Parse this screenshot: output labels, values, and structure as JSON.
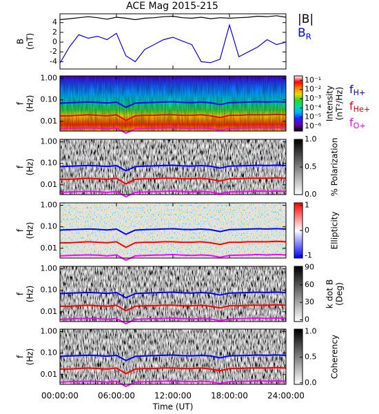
{
  "chart_data": [
    {
      "type": "line",
      "title": "ACE Mag 2015-215",
      "ylabel": [
        "B",
        "(nT)"
      ],
      "x": [
        0,
        1,
        2,
        3,
        4,
        5,
        6,
        7,
        8,
        9,
        10,
        11,
        12,
        13,
        14,
        15,
        16,
        17,
        18,
        19,
        20,
        21,
        22,
        23,
        24
      ],
      "xlim": [
        0,
        24
      ],
      "xticks": [
        0,
        6,
        12,
        18,
        24
      ],
      "ylim": [
        -5.5,
        5.8
      ],
      "yticks": [
        -4,
        -2,
        0,
        2,
        4
      ],
      "series": [
        {
          "name": "|B|",
          "color": "#000000",
          "values": [
            4.6,
            4.8,
            5.0,
            5.2,
            5.0,
            4.7,
            5.1,
            4.9,
            4.6,
            4.9,
            5.0,
            5.2,
            5.3,
            5.0,
            4.9,
            5.1,
            4.8,
            5.0,
            4.9,
            5.0,
            5.1,
            5.3,
            5.2,
            5.4,
            5.1
          ]
        },
        {
          "name": "B",
          "subscript": "R",
          "color": "#0000ff",
          "values": [
            -4.3,
            -1.0,
            1.5,
            0.8,
            1.2,
            0.5,
            1.8,
            -2.8,
            -4.0,
            -1.5,
            -0.5,
            0.5,
            1.0,
            0.2,
            -0.5,
            -4.0,
            -4.2,
            -3.5,
            3.5,
            -3.0,
            -2.0,
            -1.0,
            0.5,
            -0.5,
            0.0
          ]
        }
      ]
    },
    {
      "type": "spectrogram",
      "ylabel": [
        "f",
        "(Hz)"
      ],
      "log_y": true,
      "x": [
        0,
        1,
        2,
        3,
        4,
        5,
        6,
        7,
        8,
        9,
        10,
        11,
        12,
        13,
        14,
        15,
        16,
        17,
        18,
        19,
        20,
        21,
        22,
        23,
        24
      ],
      "xlim": [
        0,
        24
      ],
      "xticks": [
        0,
        6,
        12,
        18,
        24
      ],
      "ylim": [
        0.0035,
        1.3
      ],
      "yticks": [
        {
          "value": 0.01,
          "label": "0.01"
        },
        {
          "value": 0.1,
          "label": "0.10"
        },
        {
          "value": 1,
          "label": "1.00"
        }
      ],
      "colorbar": {
        "label": [
          "Intensity",
          "(nT²/Hz)"
        ],
        "lim": [
          3e-07,
          0.3
        ],
        "log": true,
        "ticks": [
          {
            "value": 1e-06,
            "label": "10⁻⁶"
          },
          {
            "value": 1e-05,
            "label": "10⁻⁵"
          },
          {
            "value": 0.0001,
            "label": "10⁻⁴"
          },
          {
            "value": 0.001,
            "label": "10⁻³"
          },
          {
            "value": 0.01,
            "label": "10⁻²"
          },
          {
            "value": 0.1,
            "label": "10⁻¹"
          }
        ],
        "colors": [
          "#000000",
          "#6a00a8",
          "#2020ff",
          "#00b0ff",
          "#00e0a0",
          "#30d030",
          "#e0e000",
          "#ff8000",
          "#ff0000",
          "#ffffff"
        ]
      },
      "series": [
        {
          "name": "f",
          "subscript": "H+",
          "color": "#0000ff",
          "values": [
            0.07,
            0.073,
            0.076,
            0.079,
            0.076,
            0.071,
            0.078,
            0.045,
            0.07,
            0.074,
            0.076,
            0.079,
            0.081,
            0.076,
            0.074,
            0.078,
            0.073,
            0.06,
            0.074,
            0.076,
            0.078,
            0.081,
            0.079,
            0.082,
            0.078
          ]
        },
        {
          "name": "f",
          "subscript": "He+",
          "color": "#ff0000",
          "values": [
            0.018,
            0.018,
            0.019,
            0.02,
            0.019,
            0.018,
            0.02,
            0.011,
            0.018,
            0.019,
            0.019,
            0.02,
            0.02,
            0.019,
            0.019,
            0.02,
            0.018,
            0.015,
            0.019,
            0.019,
            0.02,
            0.02,
            0.02,
            0.021,
            0.02
          ]
        },
        {
          "name": "f",
          "subscript": "O+",
          "color": "#ff00ff",
          "values": [
            0.0044,
            0.0046,
            0.0048,
            0.0049,
            0.0048,
            0.0044,
            0.0049,
            0.0028,
            0.0044,
            0.0046,
            0.0048,
            0.0049,
            0.0051,
            0.0048,
            0.0046,
            0.0049,
            0.0046,
            0.0038,
            0.0046,
            0.0048,
            0.0049,
            0.0051,
            0.0049,
            0.0051,
            0.0049
          ]
        }
      ]
    },
    {
      "type": "spectrogram",
      "ylabel": [
        "f",
        "(Hz)"
      ],
      "log_y": true,
      "x": [
        0,
        1,
        2,
        3,
        4,
        5,
        6,
        7,
        8,
        9,
        10,
        11,
        12,
        13,
        14,
        15,
        16,
        17,
        18,
        19,
        20,
        21,
        22,
        23,
        24
      ],
      "xlim": [
        0,
        24
      ],
      "xticks": [
        0,
        6,
        12,
        18,
        24
      ],
      "ylim": [
        0.0035,
        1.3
      ],
      "yticks": [
        {
          "value": 0.01,
          "label": "0.01"
        },
        {
          "value": 0.1,
          "label": "0.10"
        },
        {
          "value": 1,
          "label": "1.00"
        }
      ],
      "colorbar": {
        "label": [
          "% Polarization"
        ],
        "lim": [
          0,
          1
        ],
        "ticks": [
          {
            "value": 0,
            "label": "0.0"
          },
          {
            "value": 0.5,
            "label": "0.5"
          },
          {
            "value": 1,
            "label": "1.0"
          }
        ],
        "colors": [
          "#ffffff",
          "#000000"
        ]
      },
      "series": [
        {
          "color": "#0000ff",
          "values": [
            0.07,
            0.073,
            0.076,
            0.079,
            0.076,
            0.071,
            0.078,
            0.045,
            0.07,
            0.074,
            0.076,
            0.079,
            0.081,
            0.076,
            0.074,
            0.078,
            0.073,
            0.06,
            0.074,
            0.076,
            0.078,
            0.081,
            0.079,
            0.082,
            0.078
          ]
        },
        {
          "color": "#ff0000",
          "values": [
            0.018,
            0.018,
            0.019,
            0.02,
            0.019,
            0.018,
            0.02,
            0.011,
            0.018,
            0.019,
            0.019,
            0.02,
            0.02,
            0.019,
            0.019,
            0.02,
            0.018,
            0.015,
            0.019,
            0.019,
            0.02,
            0.02,
            0.02,
            0.021,
            0.02
          ]
        },
        {
          "color": "#ff00ff",
          "values": [
            0.0044,
            0.0046,
            0.0048,
            0.0049,
            0.0048,
            0.0044,
            0.0049,
            0.0028,
            0.0044,
            0.0046,
            0.0048,
            0.0049,
            0.0051,
            0.0048,
            0.0046,
            0.0049,
            0.0046,
            0.0038,
            0.0046,
            0.0048,
            0.0049,
            0.0051,
            0.0049,
            0.0051,
            0.0049
          ]
        }
      ]
    },
    {
      "type": "spectrogram",
      "ylabel": [
        "f",
        "(Hz)"
      ],
      "log_y": true,
      "x": [
        0,
        1,
        2,
        3,
        4,
        5,
        6,
        7,
        8,
        9,
        10,
        11,
        12,
        13,
        14,
        15,
        16,
        17,
        18,
        19,
        20,
        21,
        22,
        23,
        24
      ],
      "xlim": [
        0,
        24
      ],
      "xticks": [
        0,
        6,
        12,
        18,
        24
      ],
      "ylim": [
        0.0035,
        1.3
      ],
      "yticks": [
        {
          "value": 0.01,
          "label": "0.01"
        },
        {
          "value": 0.1,
          "label": "0.10"
        },
        {
          "value": 1,
          "label": "1.00"
        }
      ],
      "colorbar": {
        "label": [
          "Ellipticity"
        ],
        "lim": [
          -1.1,
          1.1
        ],
        "ticks": [
          -1,
          0,
          1
        ],
        "colors": [
          "#0000ff",
          "#ffffff",
          "#ff0000"
        ]
      },
      "series": [
        {
          "color": "#0000ff",
          "values": [
            0.07,
            0.073,
            0.076,
            0.079,
            0.076,
            0.071,
            0.078,
            0.045,
            0.07,
            0.074,
            0.076,
            0.079,
            0.081,
            0.076,
            0.074,
            0.078,
            0.073,
            0.06,
            0.074,
            0.076,
            0.078,
            0.081,
            0.079,
            0.082,
            0.078
          ]
        },
        {
          "color": "#ff0000",
          "values": [
            0.018,
            0.018,
            0.019,
            0.02,
            0.019,
            0.018,
            0.02,
            0.011,
            0.018,
            0.019,
            0.019,
            0.02,
            0.02,
            0.019,
            0.019,
            0.02,
            0.018,
            0.015,
            0.019,
            0.019,
            0.02,
            0.02,
            0.02,
            0.021,
            0.02
          ]
        },
        {
          "color": "#ff00ff",
          "values": [
            0.0044,
            0.0046,
            0.0048,
            0.0049,
            0.0048,
            0.0044,
            0.0049,
            0.0028,
            0.0044,
            0.0046,
            0.0048,
            0.0049,
            0.0051,
            0.0048,
            0.0046,
            0.0049,
            0.0046,
            0.0038,
            0.0046,
            0.0048,
            0.0049,
            0.0051,
            0.0049,
            0.0051,
            0.0049
          ]
        }
      ]
    },
    {
      "type": "spectrogram",
      "ylabel": [
        "f",
        "(Hz)"
      ],
      "log_y": true,
      "x": [
        0,
        1,
        2,
        3,
        4,
        5,
        6,
        7,
        8,
        9,
        10,
        11,
        12,
        13,
        14,
        15,
        16,
        17,
        18,
        19,
        20,
        21,
        22,
        23,
        24
      ],
      "xlim": [
        0,
        24
      ],
      "xticks": [
        0,
        6,
        12,
        18,
        24
      ],
      "ylim": [
        0.0035,
        1.3
      ],
      "yticks": [
        {
          "value": 0.01,
          "label": "0.01"
        },
        {
          "value": 0.1,
          "label": "0.10"
        },
        {
          "value": 1,
          "label": "1.00"
        }
      ],
      "colorbar": {
        "label": [
          "k dot B",
          "(Deg)"
        ],
        "lim": [
          -3,
          92
        ],
        "ticks": [
          0,
          30,
          60,
          90
        ],
        "colors": [
          "#ffffff",
          "#000000"
        ]
      },
      "series": [
        {
          "color": "#0000ff",
          "values": [
            0.07,
            0.073,
            0.076,
            0.079,
            0.076,
            0.071,
            0.078,
            0.045,
            0.07,
            0.074,
            0.076,
            0.079,
            0.081,
            0.076,
            0.074,
            0.078,
            0.073,
            0.06,
            0.074,
            0.076,
            0.078,
            0.081,
            0.079,
            0.082,
            0.078
          ]
        },
        {
          "color": "#ff0000",
          "values": [
            0.018,
            0.018,
            0.019,
            0.02,
            0.019,
            0.018,
            0.02,
            0.011,
            0.018,
            0.019,
            0.019,
            0.02,
            0.02,
            0.019,
            0.019,
            0.02,
            0.018,
            0.015,
            0.019,
            0.019,
            0.02,
            0.02,
            0.02,
            0.021,
            0.02
          ]
        },
        {
          "color": "#ff00ff",
          "values": [
            0.0044,
            0.0046,
            0.0048,
            0.0049,
            0.0048,
            0.0044,
            0.0049,
            0.0028,
            0.0044,
            0.0046,
            0.0048,
            0.0049,
            0.0051,
            0.0048,
            0.0046,
            0.0049,
            0.0046,
            0.0038,
            0.0046,
            0.0048,
            0.0049,
            0.0051,
            0.0049,
            0.0051,
            0.0049
          ]
        }
      ]
    },
    {
      "type": "spectrogram",
      "ylabel": [
        "f",
        "(Hz)"
      ],
      "log_y": true,
      "xlabel": "Time (UT)",
      "x": [
        0,
        1,
        2,
        3,
        4,
        5,
        6,
        7,
        8,
        9,
        10,
        11,
        12,
        13,
        14,
        15,
        16,
        17,
        18,
        19,
        20,
        21,
        22,
        23,
        24
      ],
      "xlim": [
        0,
        24
      ],
      "xticks": [
        {
          "value": 0,
          "label": "00:00:00"
        },
        {
          "value": 6,
          "label": "06:00:00"
        },
        {
          "value": 12,
          "label": "12:00:00"
        },
        {
          "value": 18,
          "label": "18:00:00"
        },
        {
          "value": 24,
          "label": "24:00:00"
        }
      ],
      "ylim": [
        0.0035,
        1.3
      ],
      "yticks": [
        {
          "value": 0.01,
          "label": "0.01"
        },
        {
          "value": 0.1,
          "label": "0.10"
        },
        {
          "value": 1,
          "label": "1.00"
        }
      ],
      "colorbar": {
        "label": [
          "Coherency"
        ],
        "lim": [
          -0.03,
          1.05
        ],
        "ticks": [
          {
            "value": 0,
            "label": "0.0"
          },
          {
            "value": 0.5,
            "label": "0.5"
          },
          {
            "value": 1,
            "label": "1.0"
          }
        ],
        "colors": [
          "#ffffff",
          "#000000"
        ]
      },
      "series": [
        {
          "color": "#0000ff",
          "values": [
            0.07,
            0.073,
            0.076,
            0.079,
            0.076,
            0.071,
            0.078,
            0.045,
            0.07,
            0.074,
            0.076,
            0.079,
            0.081,
            0.076,
            0.074,
            0.078,
            0.073,
            0.06,
            0.074,
            0.076,
            0.078,
            0.081,
            0.079,
            0.082,
            0.078
          ]
        },
        {
          "color": "#ff0000",
          "values": [
            0.018,
            0.018,
            0.019,
            0.02,
            0.019,
            0.018,
            0.02,
            0.011,
            0.018,
            0.019,
            0.019,
            0.02,
            0.02,
            0.019,
            0.019,
            0.02,
            0.018,
            0.015,
            0.019,
            0.019,
            0.02,
            0.02,
            0.02,
            0.021,
            0.02
          ]
        },
        {
          "color": "#ff00ff",
          "values": [
            0.0044,
            0.0046,
            0.0048,
            0.0049,
            0.0048,
            0.0044,
            0.0049,
            0.0028,
            0.0044,
            0.0046,
            0.0048,
            0.0049,
            0.0051,
            0.0048,
            0.0046,
            0.0049,
            0.0046,
            0.0038,
            0.0046,
            0.0048,
            0.0049,
            0.0051,
            0.0049,
            0.0051,
            0.0049
          ]
        }
      ]
    }
  ]
}
